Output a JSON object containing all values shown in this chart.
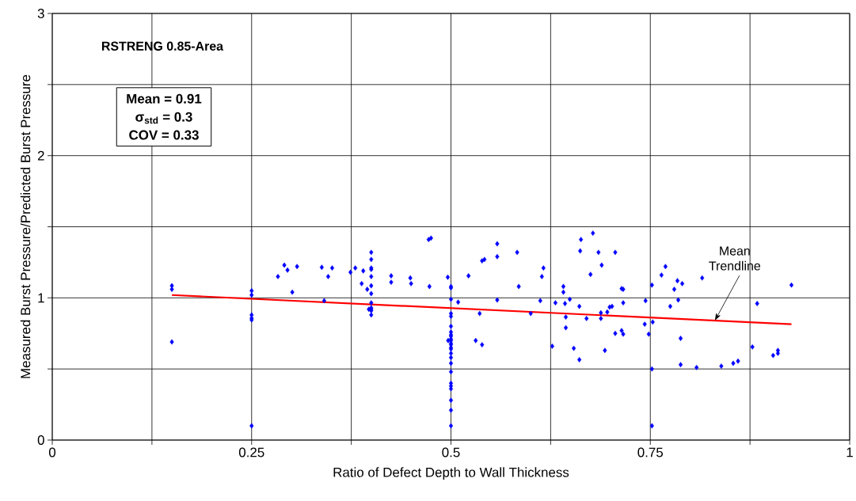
{
  "chart_data": {
    "type": "scatter",
    "xlabel": "Ratio of Defect Depth to Wall Thickness",
    "ylabel": "Measured Burst Pressure/Predicted Burst Pressure",
    "xlim": [
      0,
      1
    ],
    "ylim": [
      0,
      3
    ],
    "xticks": [
      0,
      {
        "value": 0.125,
        "label": null
      },
      0.25,
      {
        "value": 0.375,
        "label": null
      },
      0.5,
      {
        "value": 0.625,
        "label": null
      },
      0.75,
      {
        "value": 0.875,
        "label": null
      },
      1
    ],
    "yticks": [
      0,
      {
        "value": 0.5,
        "label": null
      },
      1,
      {
        "value": 1.5,
        "label": null
      },
      2,
      {
        "value": 2.5,
        "label": null
      },
      3
    ],
    "grid": true,
    "annotations": [
      "RSTRENG 0.85-Area",
      "Mean = 0.91",
      "σ$_{std}$ = 0.3",
      "COV = 0.33",
      {
        "text": "Mean Trendline",
        "x": 0.831,
        "y": 0.84
      }
    ],
    "series": [
      {
        "color": "#0000ff",
        "marker": "diamond",
        "x": [
          0.15,
          0.15,
          0.15,
          0.25,
          0.25,
          0.25,
          0.25,
          0.25,
          0.25,
          0.283,
          0.291,
          0.295,
          0.307,
          0.301,
          0.338,
          0.341,
          0.346,
          0.351,
          0.374,
          0.38,
          0.388,
          0.39,
          0.395,
          0.4,
          0.4,
          0.4,
          0.4,
          0.4,
          0.4,
          0.4,
          0.4,
          0.4,
          0.4,
          0.4,
          0.4,
          0.397,
          0.425,
          0.425,
          0.449,
          0.45,
          0.472,
          0.475,
          0.473,
          0.496,
          0.5,
          0.5,
          0.5,
          0.5,
          0.5,
          0.5,
          0.5,
          0.5,
          0.5,
          0.5,
          0.5,
          0.5,
          0.5,
          0.5,
          0.5,
          0.5,
          0.5,
          0.5,
          0.5,
          0.5,
          0.5,
          0.5,
          0.5,
          0.5,
          0.5,
          0.4965,
          0.509,
          0.522,
          0.531,
          0.539,
          0.536,
          0.539,
          0.542,
          0.558,
          0.558,
          0.558,
          0.583,
          0.585,
          0.6,
          0.612,
          0.614,
          0.616,
          0.627,
          0.631,
          0.641,
          0.641,
          0.643,
          0.644,
          0.644,
          0.649,
          0.654,
          0.661,
          0.662,
          0.663,
          0.661,
          0.67,
          0.675,
          0.678,
          0.685,
          0.689,
          0.688,
          0.688,
          0.693,
          0.696,
          0.699,
          0.702,
          0.706,
          0.706,
          0.714,
          0.716,
          0.716,
          0.714,
          0.716,
          0.743,
          0.744,
          0.748,
          0.752,
          0.753,
          0.752,
          0.752,
          0.764,
          0.769,
          0.775,
          0.78,
          0.784,
          0.785,
          0.79,
          0.788,
          0.788,
          0.808,
          0.815,
          0.839,
          0.854,
          0.86,
          0.878,
          0.884,
          0.904,
          0.91,
          0.91,
          0.927
        ],
        "values": [
          1.085,
          1.06,
          0.69,
          1.05,
          1.02,
          0.88,
          0.857,
          0.845,
          0.1,
          1.15,
          1.23,
          1.195,
          1.22,
          1.04,
          1.215,
          0.98,
          1.15,
          1.21,
          1.18,
          1.21,
          1.1,
          1.19,
          1.06,
          1.32,
          1.27,
          1.21,
          1.2,
          1.15,
          1.085,
          1.03,
          0.965,
          0.93,
          0.92,
          0.91,
          0.88,
          0.92,
          1.155,
          1.11,
          1.14,
          1.1,
          1.41,
          1.42,
          1.08,
          1.145,
          1.08,
          1.07,
          0.99,
          0.89,
          0.87,
          0.8,
          0.76,
          0.74,
          0.73,
          0.71,
          0.7,
          0.68,
          0.67,
          0.65,
          0.64,
          0.61,
          0.58,
          0.54,
          0.48,
          0.4,
          0.38,
          0.36,
          0.28,
          0.21,
          0.1,
          0.7,
          0.97,
          1.155,
          0.7,
          1.26,
          0.89,
          0.67,
          1.27,
          1.38,
          1.29,
          0.985,
          1.32,
          1.08,
          0.89,
          0.98,
          1.15,
          1.21,
          0.66,
          0.965,
          1.08,
          1.04,
          0.96,
          0.865,
          0.79,
          0.99,
          0.645,
          0.565,
          1.33,
          1.41,
          0.94,
          0.855,
          1.165,
          1.455,
          1.32,
          1.23,
          0.895,
          0.855,
          0.63,
          0.9,
          0.935,
          0.94,
          1.32,
          0.75,
          1.065,
          1.06,
          0.965,
          0.77,
          0.745,
          0.815,
          0.98,
          0.745,
          1.09,
          0.83,
          0.5,
          0.1,
          1.16,
          1.22,
          0.94,
          1.06,
          1.12,
          0.985,
          1.1,
          0.715,
          0.53,
          0.51,
          1.14,
          0.52,
          0.54,
          0.555,
          0.655,
          0.96,
          0.595,
          0.63,
          0.61,
          1.09
        ]
      },
      {
        "type": "line",
        "color": "#ff0000",
        "marker": "none",
        "line_style": "solid",
        "x": [
          0.15,
          0.927
        ],
        "values": [
          1.02,
          0.815
        ]
      }
    ]
  }
}
